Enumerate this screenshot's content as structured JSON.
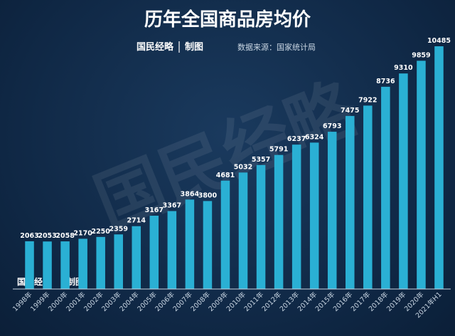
{
  "chart_data": {
    "type": "bar",
    "title": "历年全国商品房均价",
    "brand": "国民经略",
    "made_by": "制图",
    "source": "数据来源：国家统计局",
    "watermark": "国民经略",
    "categories": [
      "1998年",
      "1999年",
      "2000年",
      "2001年",
      "2002年",
      "2003年",
      "2004年",
      "2005年",
      "2006年",
      "2007年",
      "2008年",
      "2009年",
      "2010年",
      "2011年",
      "2012年",
      "2013年",
      "2014年",
      "2015年",
      "2016年",
      "2017年",
      "2018年",
      "2019年",
      "2020年",
      "2021年H1"
    ],
    "values": [
      2063,
      2053,
      2058,
      2170,
      2250,
      2359,
      2714,
      3167,
      3367,
      3864,
      3800,
      4681,
      5032,
      5357,
      5791,
      6237,
      6324,
      6793,
      7475,
      7922,
      8736,
      9310,
      9859,
      10485
    ],
    "ylim": [
      0,
      10485
    ],
    "grid": false,
    "legend": "none",
    "colors": {
      "bar": "#2ab0d4",
      "background": "#0f2744",
      "label": "#ffffff",
      "axis": "#c9d6e3"
    }
  }
}
